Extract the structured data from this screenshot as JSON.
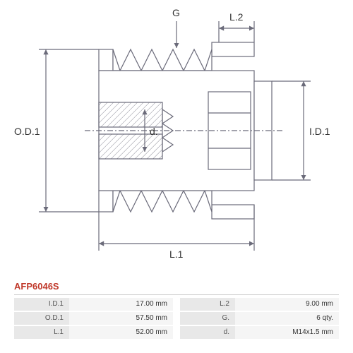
{
  "part_number": "AFP6046S",
  "labels": {
    "od1": "O.D.1",
    "id1": "I.D.1",
    "l1": "L.1",
    "l2": "L.2",
    "g": "G",
    "d": "d."
  },
  "specs_left": [
    {
      "key": "I.D.1",
      "val": "17.00 mm"
    },
    {
      "key": "O.D.1",
      "val": "57.50 mm"
    },
    {
      "key": "L.1",
      "val": "52.00 mm"
    }
  ],
  "specs_right": [
    {
      "key": "L.2",
      "val": "9.00 mm"
    },
    {
      "key": "G.",
      "val": "6 qty."
    },
    {
      "key": "d.",
      "val": "M14x1.5 mm"
    }
  ],
  "style": {
    "stroke": "#6b6b7a",
    "stroke_width": 1.2,
    "hatch_stroke": "#6b6b7a",
    "arrow_fill": "#6b6b7a",
    "background": "#ffffff"
  }
}
